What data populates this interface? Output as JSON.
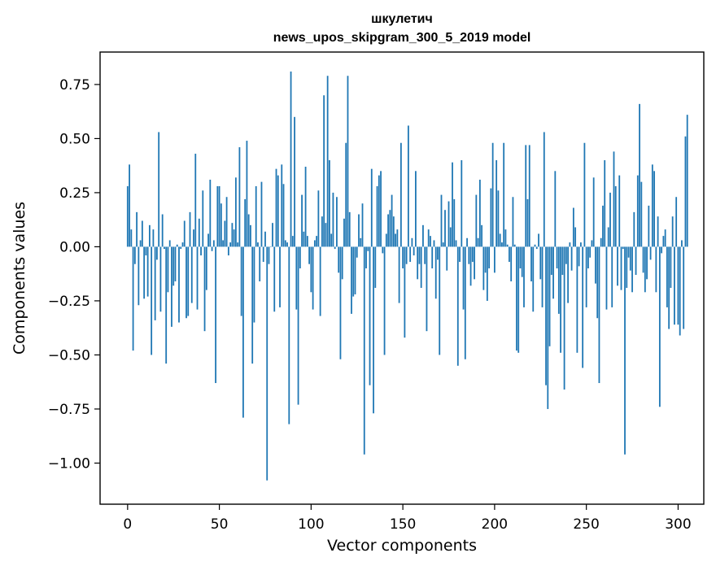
{
  "chart_data": {
    "type": "bar",
    "title": "шкулетич",
    "subtitle": "news_upos_skipgram_300_5_2019 model",
    "xlabel": "Vector components",
    "ylabel": "Components values",
    "xlim": [
      -15,
      314
    ],
    "ylim": [
      -1.19,
      0.9
    ],
    "xticks": [
      0,
      50,
      100,
      150,
      200,
      250,
      300
    ],
    "xtick_labels": [
      "0",
      "50",
      "100",
      "150",
      "200",
      "250",
      "300"
    ],
    "yticks": [
      0.75,
      0.5,
      0.25,
      0.0,
      -0.25,
      -0.5,
      -0.75,
      -1.0
    ],
    "ytick_labels": [
      "0.75",
      "0.50",
      "0.25",
      "0.00",
      "−0.25",
      "−0.50",
      "−0.75",
      "−1.00"
    ],
    "bar_color": "#1f77b4",
    "grid": false,
    "series": [
      {
        "name": "components",
        "values": [
          0.28,
          0.38,
          0.08,
          -0.48,
          -0.08,
          0.16,
          -0.27,
          0.03,
          0.12,
          -0.24,
          -0.04,
          -0.23,
          0.1,
          -0.5,
          0.08,
          -0.34,
          -0.06,
          0.53,
          -0.3,
          0.15,
          -0.01,
          -0.54,
          -0.21,
          0.03,
          -0.37,
          -0.18,
          -0.16,
          0.01,
          -0.35,
          -0.01,
          0.02,
          0.12,
          -0.33,
          -0.32,
          0.16,
          -0.26,
          0.08,
          0.43,
          -0.29,
          0.13,
          -0.04,
          0.26,
          -0.39,
          -0.2,
          0.06,
          0.31,
          -0.02,
          0.03,
          -0.63,
          0.28,
          0.28,
          0.2,
          0.03,
          0.12,
          0.23,
          -0.04,
          0.02,
          0.11,
          0.08,
          0.32,
          0.02,
          0.46,
          -0.32,
          -0.79,
          0.22,
          0.49,
          0.15,
          0.1,
          -0.54,
          -0.35,
          0.28,
          0.02,
          -0.16,
          0.3,
          -0.07,
          0.07,
          -1.08,
          -0.08,
          0.0,
          0.11,
          -0.3,
          0.36,
          0.33,
          -0.28,
          0.38,
          0.29,
          0.03,
          0.02,
          -0.82,
          0.81,
          0.05,
          0.6,
          -0.29,
          -0.73,
          -0.1,
          0.24,
          0.07,
          0.37,
          0.05,
          -0.08,
          -0.21,
          -0.29,
          0.03,
          0.05,
          0.26,
          -0.32,
          0.14,
          0.7,
          0.11,
          0.79,
          0.4,
          0.06,
          0.25,
          -0.01,
          0.23,
          -0.12,
          -0.52,
          -0.15,
          0.13,
          0.48,
          0.79,
          0.16,
          -0.31,
          -0.23,
          -0.22,
          -0.05,
          0.15,
          0.04,
          0.2,
          -0.96,
          -0.1,
          -0.02,
          -0.64,
          0.36,
          -0.77,
          -0.19,
          0.28,
          0.33,
          0.35,
          -0.03,
          -0.5,
          0.06,
          0.15,
          0.17,
          0.24,
          0.14,
          0.06,
          0.08,
          -0.26,
          0.48,
          -0.1,
          -0.42,
          -0.08,
          0.56,
          -0.07,
          0.04,
          -0.04,
          0.35,
          -0.15,
          -0.08,
          -0.19,
          0.1,
          -0.08,
          -0.39,
          0.08,
          0.05,
          -0.1,
          0.03,
          -0.24,
          -0.06,
          -0.5,
          0.24,
          0.02,
          0.17,
          -0.11,
          0.21,
          0.09,
          0.39,
          0.22,
          0.03,
          -0.55,
          -0.07,
          0.4,
          -0.29,
          -0.52,
          0.04,
          -0.08,
          -0.18,
          -0.07,
          -0.15,
          0.24,
          0.04,
          0.31,
          0.1,
          -0.2,
          -0.12,
          -0.25,
          -0.1,
          0.27,
          0.48,
          -0.12,
          0.4,
          0.26,
          0.06,
          0.02,
          0.48,
          0.08,
          0.01,
          -0.07,
          -0.16,
          0.23,
          0.01,
          -0.48,
          -0.49,
          -0.1,
          -0.14,
          -0.28,
          0.47,
          0.22,
          0.47,
          -0.16,
          -0.3,
          0.01,
          -0.01,
          0.06,
          -0.15,
          -0.28,
          0.53,
          -0.64,
          -0.75,
          -0.46,
          -0.13,
          -0.24,
          0.35,
          -0.1,
          -0.31,
          -0.49,
          -0.13,
          -0.66,
          -0.08,
          -0.26,
          0.02,
          -0.11,
          0.18,
          0.09,
          -0.49,
          -0.09,
          0.02,
          -0.56,
          0.48,
          -0.28,
          -0.1,
          -0.05,
          0.03,
          0.32,
          -0.17,
          -0.33,
          -0.63,
          0.04,
          0.19,
          0.4,
          -0.29,
          0.09,
          0.25,
          -0.28,
          0.44,
          0.28,
          -0.18,
          0.33,
          -0.2,
          -0.01,
          -0.96,
          -0.19,
          -0.05,
          -0.11,
          -0.21,
          0.16,
          -0.13,
          0.33,
          0.66,
          0.3,
          -0.12,
          -0.21,
          -0.15,
          0.19,
          -0.06,
          0.38,
          0.35,
          -0.21,
          0.14,
          -0.74,
          -0.03,
          0.05,
          0.08,
          -0.28,
          -0.38,
          -0.19,
          0.14,
          -0.36,
          0.23,
          -0.36,
          -0.41,
          0.03,
          -0.38,
          0.51,
          0.61
        ]
      }
    ]
  }
}
